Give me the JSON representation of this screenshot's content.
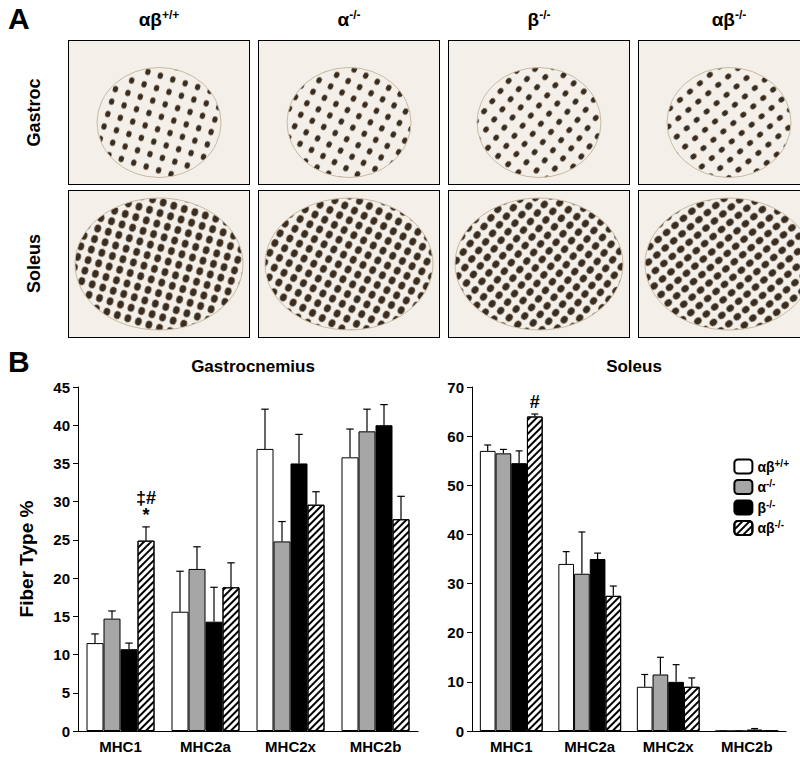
{
  "figure": {
    "panel_a": {
      "label": "A",
      "columns": [
        "αβ+/+",
        "α-/-",
        "β-/-",
        "αβ-/-"
      ],
      "rows": [
        "Gastroc",
        "Soleus"
      ]
    },
    "panel_b": {
      "label": "B"
    }
  },
  "chart_data": [
    {
      "type": "bar",
      "title": "Gastrocnemius",
      "y_label": "Fiber Type %",
      "categories": [
        "MHC1",
        "MHC2a",
        "MHC2x",
        "MHC2b"
      ],
      "series": [
        {
          "name": "αβ+/+",
          "color": "#ffffff",
          "values": [
            11.5,
            15.6,
            36.9,
            35.8
          ],
          "errors": [
            1.2,
            5.3,
            5.2,
            3.7
          ]
        },
        {
          "name": "α-/-",
          "color": "#a6a6a6",
          "values": [
            14.7,
            21.2,
            24.8,
            39.2
          ],
          "errors": [
            1.0,
            2.9,
            2.6,
            2.9
          ]
        },
        {
          "name": "β-/-",
          "color": "#000000",
          "values": [
            10.7,
            14.3,
            35.0,
            40.0
          ],
          "errors": [
            0.8,
            4.5,
            3.8,
            2.7
          ]
        },
        {
          "name": "αβ-/-",
          "color": "#ffffff",
          "values": [
            24.9,
            18.8,
            29.6,
            27.7
          ],
          "errors": [
            1.8,
            3.2,
            1.7,
            3.0
          ]
        }
      ],
      "annotations": [
        {
          "text": "*",
          "category": "MHC1",
          "series": "αβ-/-"
        },
        {
          "text": "‡#",
          "category": "MHC1",
          "series": "αβ-/-"
        }
      ],
      "ylim": [
        0,
        45
      ],
      "yticks": [
        0,
        5,
        10,
        15,
        20,
        25,
        30,
        35,
        40,
        45
      ],
      "grid": false
    },
    {
      "type": "bar",
      "title": "Soleus",
      "categories": [
        "MHC1",
        "MHC2a",
        "MHC2x",
        "MHC2b"
      ],
      "series": [
        {
          "name": "αβ+/+",
          "color": "#ffffff",
          "values": [
            57.0,
            34.0,
            9.0,
            0
          ],
          "errors": [
            1.2,
            2.5,
            2.5,
            0
          ]
        },
        {
          "name": "α-/-",
          "color": "#a6a6a6",
          "values": [
            56.5,
            32.0,
            11.5,
            0
          ],
          "errors": [
            0.8,
            8.5,
            3.5,
            0
          ]
        },
        {
          "name": "β-/-",
          "color": "#000000",
          "values": [
            54.5,
            35.0,
            10.0,
            0.3
          ],
          "errors": [
            2.5,
            1.2,
            3.5,
            0.2
          ]
        },
        {
          "name": "αβ-/-",
          "color": "#ffffff",
          "values": [
            64.0,
            27.5,
            9.0,
            0
          ],
          "errors": [
            0.5,
            2.0,
            1.8,
            0
          ]
        }
      ],
      "annotations": [
        {
          "text": "#",
          "category": "MHC1",
          "series": "αβ-/-"
        }
      ],
      "ylim": [
        0,
        70
      ],
      "yticks": [
        0,
        10,
        20,
        30,
        40,
        50,
        60,
        70
      ],
      "grid": false,
      "legend": "top-right"
    }
  ]
}
